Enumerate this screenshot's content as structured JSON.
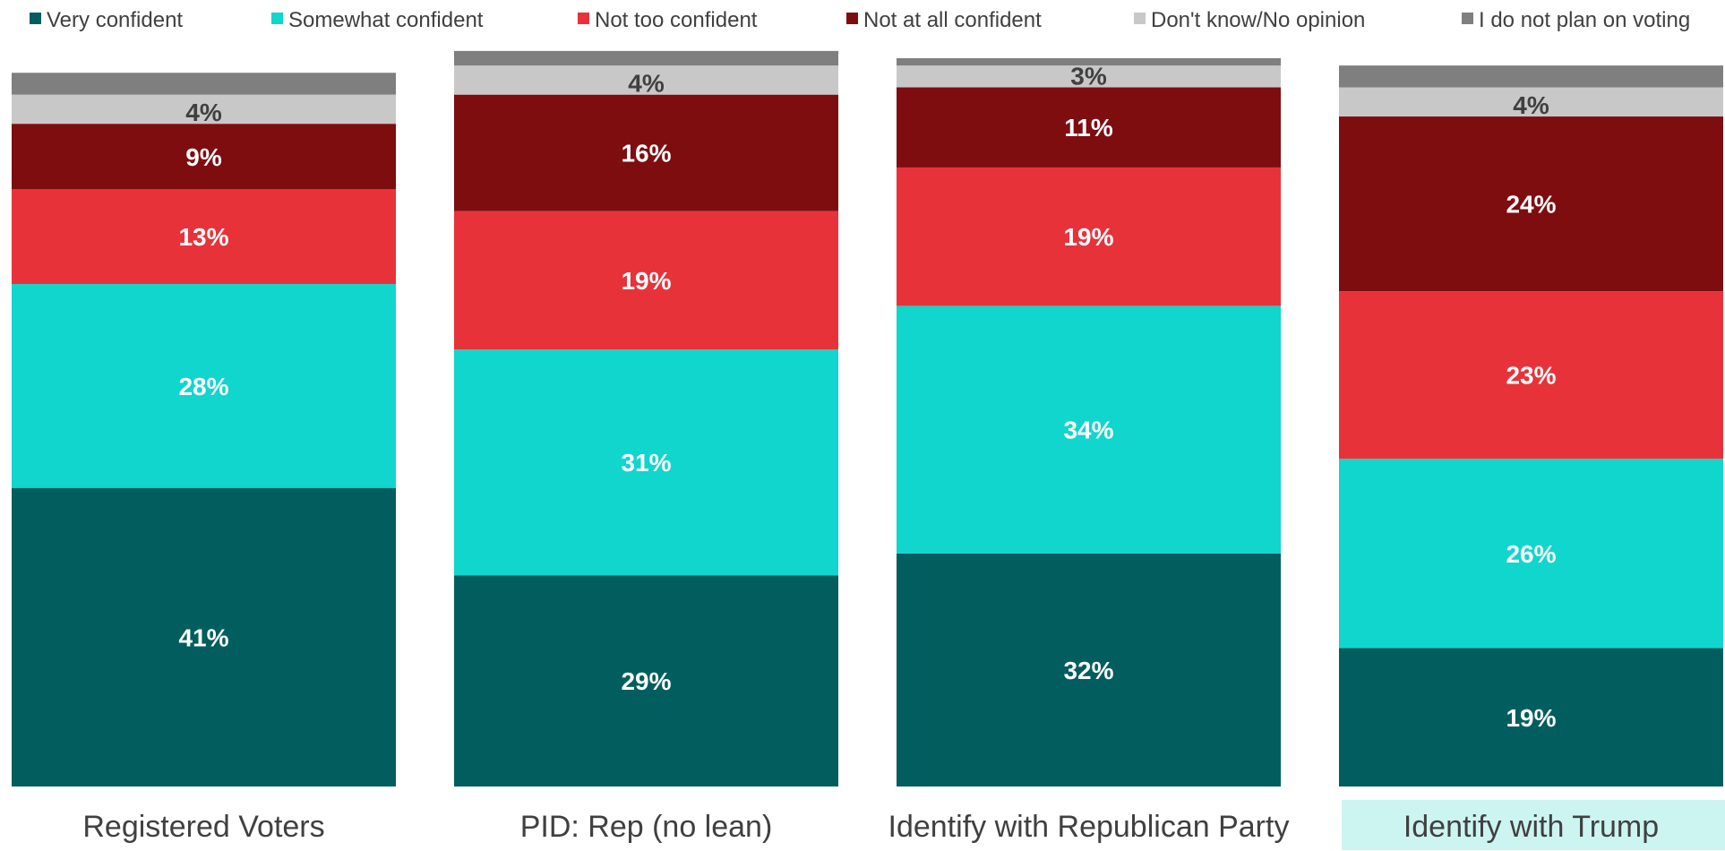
{
  "chart_data": {
    "type": "bar",
    "stacked": true,
    "orientation": "vertical",
    "total": 100,
    "legend_position": "top",
    "grid": false,
    "categories": [
      "Registered Voters",
      "PID: Rep (no lean)",
      "Identify with Republican Party",
      "Identify with Trump"
    ],
    "highlighted_category": "Identify with Trump",
    "series": [
      {
        "name": "Very confident",
        "color": "#025E5E",
        "values": [
          41,
          29,
          32,
          19
        ],
        "labels": [
          "41%",
          "29%",
          "32%",
          "19%"
        ],
        "label_color": "#FFFFFF"
      },
      {
        "name": "Somewhat confident",
        "color": "#10D6CD",
        "values": [
          28,
          31,
          34,
          26
        ],
        "labels": [
          "28%",
          "31%",
          "34%",
          "26%"
        ],
        "label_color": "#FFFFFF"
      },
      {
        "name": "Not too confident",
        "color": "#E8323A",
        "values": [
          13,
          19,
          19,
          23
        ],
        "labels": [
          "13%",
          "19%",
          "19%",
          "23%"
        ],
        "label_color": "#FFFFFF"
      },
      {
        "name": "Not at all confident",
        "color": "#7E0D10",
        "values": [
          9,
          16,
          11,
          24
        ],
        "labels": [
          "9%",
          "16%",
          "11%",
          "24%"
        ],
        "label_color": "#FFFFFF"
      },
      {
        "name": "Don't know/No opinion",
        "color": "#C8C8C8",
        "values": [
          4,
          4,
          3,
          4
        ],
        "labels": [
          "4%",
          "4%",
          "3%",
          "4%"
        ],
        "label_color": "#404040"
      },
      {
        "name": "I do not plan on voting",
        "color": "#7F7F7F",
        "values": [
          3,
          2,
          1,
          3
        ],
        "labels": [
          "",
          "",
          "",
          ""
        ],
        "label_color": "#404040"
      }
    ]
  }
}
